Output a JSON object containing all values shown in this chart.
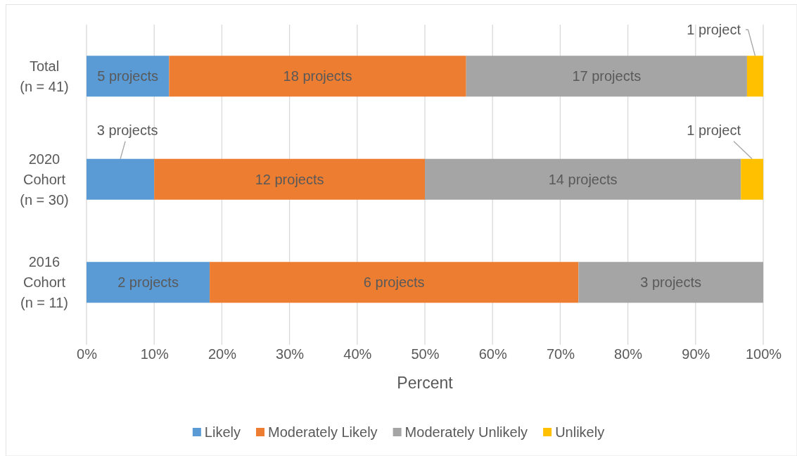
{
  "chart_data": {
    "type": "bar",
    "orientation": "horizontal",
    "stacked": true,
    "categories": [
      "Total (n = 41)",
      "2020 Cohort (n = 30)",
      "2016 Cohort (n = 11)"
    ],
    "series": [
      {
        "name": "Likely",
        "color": "#5b9bd5",
        "values": [
          12.2,
          10,
          18.2
        ]
      },
      {
        "name": "Moderately Likely",
        "color": "#ed7d31",
        "values": [
          43.9,
          40,
          54.5
        ]
      },
      {
        "name": "Moderately Unlikely",
        "color": "#a5a5a5",
        "values": [
          41.5,
          46.7,
          27.3
        ]
      },
      {
        "name": "Unlikely",
        "color": "#ffc000",
        "values": [
          2.4,
          3.3,
          0
        ]
      }
    ],
    "annotations": [
      "5 projects",
      "18 projects",
      "17 projects",
      "1 project",
      "3 projects",
      "12 projects",
      "14 projects",
      "1 project",
      "2 projects",
      "6 projects",
      "3 projects"
    ],
    "xlabel": "Percent",
    "xlim": [
      0,
      100
    ],
    "xticks": [
      {
        "value": 0,
        "label": "0%"
      },
      {
        "value": 10,
        "label": "10%"
      },
      {
        "value": 20,
        "label": "20%"
      },
      {
        "value": 30,
        "label": "30%"
      },
      {
        "value": 40,
        "label": "40%"
      },
      {
        "value": 50,
        "label": "50%"
      },
      {
        "value": 60,
        "label": "60%"
      },
      {
        "value": 70,
        "label": "70%"
      },
      {
        "value": 80,
        "label": "80%"
      },
      {
        "value": 90,
        "label": "90%"
      },
      {
        "value": 100,
        "label": "100%"
      }
    ],
    "grid": "x",
    "legend": "bottom"
  }
}
